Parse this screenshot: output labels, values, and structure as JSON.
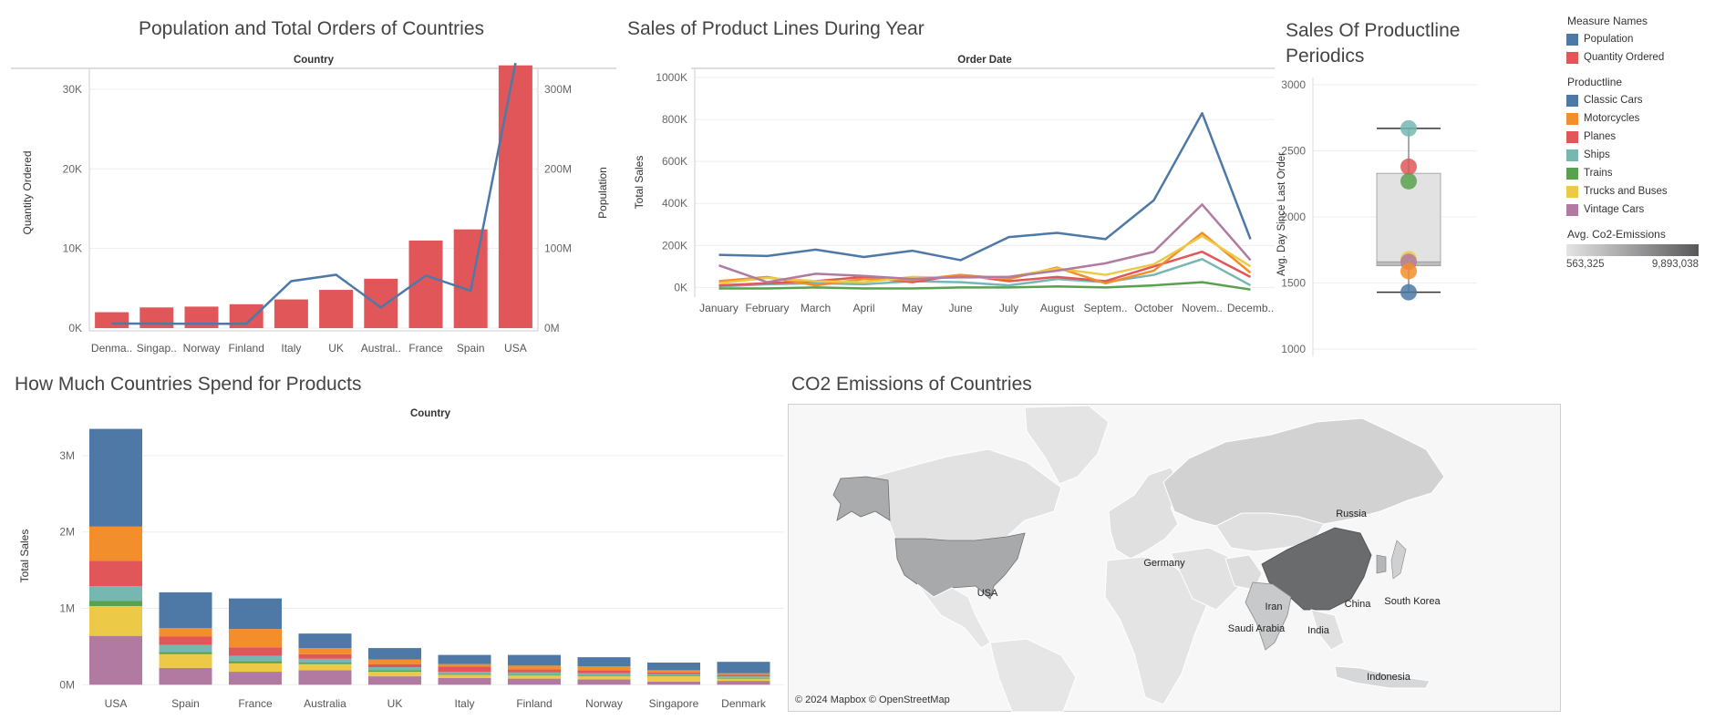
{
  "titles": {
    "population_orders": "Population and Total Orders of Countries",
    "sales_product_lines": "Sales of Product Lines During Year",
    "sales_periodics": "Sales Of Productline Periodics",
    "countries_spend": "How Much Countries Spend for Products",
    "co2": "CO2 Emissions of Countries"
  },
  "legend": {
    "measure_title": "Measure Names",
    "measures": [
      {
        "name": "Population",
        "color": "#4e79a7"
      },
      {
        "name": "Quantity Ordered",
        "color": "#e15759"
      }
    ],
    "productline_title": "Productline",
    "productlines": [
      {
        "name": "Classic Cars",
        "color": "#4e79a7"
      },
      {
        "name": "Motorcycles",
        "color": "#f28e2b"
      },
      {
        "name": "Planes",
        "color": "#e15759"
      },
      {
        "name": "Ships",
        "color": "#76b7b2"
      },
      {
        "name": "Trains",
        "color": "#59a14f"
      },
      {
        "name": "Trucks and Buses",
        "color": "#edc948"
      },
      {
        "name": "Vintage Cars",
        "color": "#b07aa1"
      }
    ],
    "co2_title": "Avg. Co2-Emissions",
    "co2_min": "563,325",
    "co2_max": "9,893,038"
  },
  "map": {
    "attribution": "© 2024 Mapbox © OpenStreetMap",
    "labels": [
      "Russia",
      "Germany",
      "USA",
      "Iran",
      "Saudi Arabia",
      "India",
      "China",
      "South Korea",
      "Indonesia"
    ]
  },
  "chart_data": [
    {
      "type": "bar",
      "id": "population_orders",
      "title": "Population and Total Orders of Countries",
      "header": "Country",
      "categories": [
        "Denma..",
        "Singap..",
        "Norway",
        "Finland",
        "Italy",
        "UK",
        "Austral..",
        "France",
        "Spain",
        "USA"
      ],
      "series": [
        {
          "name": "Quantity Ordered",
          "type": "bar",
          "axis": "left",
          "values": [
            2000,
            2600,
            2700,
            3000,
            3600,
            4800,
            6200,
            11000,
            12400,
            33000
          ]
        },
        {
          "name": "Population",
          "type": "line",
          "axis": "right",
          "values": [
            5.8,
            5.6,
            5.4,
            5.5,
            59,
            67,
            26,
            66,
            47,
            333
          ]
        }
      ],
      "ylabel": "Quantity Ordered",
      "ylabel_right": "Population",
      "ylim": [
        0,
        34000
      ],
      "ylim_right": [
        0,
        340
      ],
      "yticks": [
        {
          "v": 0,
          "t": "0K"
        },
        {
          "v": 10000,
          "t": "10K"
        },
        {
          "v": 20000,
          "t": "20K"
        },
        {
          "v": 30000,
          "t": "30K"
        }
      ],
      "yticks_right": [
        {
          "v": 0,
          "t": "0M"
        },
        {
          "v": 100,
          "t": "100M"
        },
        {
          "v": 200,
          "t": "200M"
        },
        {
          "v": 300,
          "t": "300M"
        }
      ]
    },
    {
      "type": "line",
      "id": "sales_product_lines",
      "title": "Sales of Product Lines During Year",
      "header": "Order Date",
      "x": [
        "January",
        "February",
        "March",
        "April",
        "May",
        "June",
        "July",
        "August",
        "Septem..",
        "October",
        "Novem..",
        "Decemb.."
      ],
      "ylabel": "Total Sales",
      "ylim": [
        -20000,
        1000000
      ],
      "yticks": [
        {
          "v": 0,
          "t": "0K"
        },
        {
          "v": 200000,
          "t": "200K"
        },
        {
          "v": 400000,
          "t": "400K"
        },
        {
          "v": 600000,
          "t": "600K"
        },
        {
          "v": 800000,
          "t": "800K"
        },
        {
          "v": 1000000,
          "t": "1000K"
        }
      ],
      "series": [
        {
          "name": "Classic Cars",
          "color": "#4e79a7",
          "values": [
            155000,
            150000,
            180000,
            145000,
            175000,
            130000,
            240000,
            260000,
            230000,
            415000,
            830000,
            230000
          ]
        },
        {
          "name": "Vintage Cars",
          "color": "#b07aa1",
          "values": [
            105000,
            25000,
            65000,
            55000,
            40000,
            50000,
            50000,
            80000,
            115000,
            170000,
            395000,
            130000
          ]
        },
        {
          "name": "Trucks and Buses",
          "color": "#edc948",
          "values": [
            20000,
            45000,
            30000,
            25000,
            50000,
            45000,
            50000,
            90000,
            60000,
            110000,
            245000,
            100000
          ]
        },
        {
          "name": "Motorcycles",
          "color": "#f28e2b",
          "values": [
            30000,
            50000,
            10000,
            40000,
            35000,
            60000,
            40000,
            95000,
            20000,
            80000,
            260000,
            70000
          ]
        },
        {
          "name": "Planes",
          "color": "#e15759",
          "values": [
            10000,
            20000,
            30000,
            50000,
            25000,
            60000,
            30000,
            50000,
            30000,
            100000,
            170000,
            50000
          ]
        },
        {
          "name": "Ships",
          "color": "#76b7b2",
          "values": [
            5000,
            15000,
            20000,
            15000,
            30000,
            25000,
            10000,
            40000,
            25000,
            60000,
            135000,
            10000
          ]
        },
        {
          "name": "Trains",
          "color": "#59a14f",
          "values": [
            -5000,
            -5000,
            0,
            -5000,
            -5000,
            0,
            0,
            5000,
            0,
            10000,
            25000,
            -10000
          ]
        }
      ]
    },
    {
      "type": "scatter",
      "id": "sales_periodics",
      "title": "Sales Of Productline Periodics",
      "ylabel": "Avg. Day Since Last Order",
      "ylim": [
        1000,
        3000
      ],
      "yticks": [
        {
          "v": 1000,
          "t": "1000"
        },
        {
          "v": 1500,
          "t": "1500"
        },
        {
          "v": 2000,
          "t": "2000"
        },
        {
          "v": 2500,
          "t": "2500"
        },
        {
          "v": 3000,
          "t": "3000"
        }
      ],
      "box": {
        "min": 1430,
        "q1": 1630,
        "median": 1660,
        "q3": 2330,
        "max": 2670
      },
      "points": [
        {
          "name": "Ships",
          "color": "#76b7b2",
          "y": 2670
        },
        {
          "name": "Planes",
          "color": "#e15759",
          "y": 2380
        },
        {
          "name": "Trains",
          "color": "#59a14f",
          "y": 2270
        },
        {
          "name": "Trucks and Buses",
          "color": "#edc948",
          "y": 1680
        },
        {
          "name": "Vintage Cars",
          "color": "#b07aa1",
          "y": 1660
        },
        {
          "name": "Motorcycles",
          "color": "#f28e2b",
          "y": 1590
        },
        {
          "name": "Classic Cars",
          "color": "#4e79a7",
          "y": 1430
        }
      ]
    },
    {
      "type": "bar",
      "id": "countries_spend",
      "stacked": true,
      "title": "How Much Countries Spend for Products",
      "header": "Country",
      "categories": [
        "USA",
        "Spain",
        "France",
        "Australia",
        "UK",
        "Italy",
        "Finland",
        "Norway",
        "Singapore",
        "Denmark"
      ],
      "ylabel": "Total Sales",
      "ylim": [
        -80000,
        3500000
      ],
      "yticks": [
        {
          "v": 0,
          "t": "0M"
        },
        {
          "v": 1000000,
          "t": "1M"
        },
        {
          "v": 2000000,
          "t": "2M"
        },
        {
          "v": 3000000,
          "t": "3M"
        }
      ],
      "series": [
        {
          "name": "Vintage Cars",
          "color": "#b07aa1",
          "values": [
            640000,
            220000,
            170000,
            190000,
            110000,
            90000,
            80000,
            70000,
            40000,
            50000
          ]
        },
        {
          "name": "Trucks and Buses",
          "color": "#edc948",
          "values": [
            390000,
            180000,
            110000,
            80000,
            60000,
            40000,
            40000,
            40000,
            70000,
            30000
          ]
        },
        {
          "name": "Trains",
          "color": "#59a14f",
          "values": [
            70000,
            30000,
            30000,
            20000,
            20000,
            10000,
            10000,
            10000,
            10000,
            10000
          ]
        },
        {
          "name": "Ships",
          "color": "#76b7b2",
          "values": [
            190000,
            90000,
            70000,
            50000,
            40000,
            30000,
            30000,
            30000,
            20000,
            20000
          ]
        },
        {
          "name": "Planes",
          "color": "#e15759",
          "values": [
            330000,
            110000,
            110000,
            60000,
            40000,
            70000,
            40000,
            40000,
            20000,
            20000
          ]
        },
        {
          "name": "Motorcycles",
          "color": "#f28e2b",
          "values": [
            450000,
            110000,
            240000,
            80000,
            60000,
            30000,
            50000,
            50000,
            30000,
            20000
          ]
        },
        {
          "name": "Classic Cars",
          "color": "#4e79a7",
          "values": [
            1280000,
            470000,
            400000,
            190000,
            150000,
            120000,
            140000,
            120000,
            100000,
            150000
          ]
        }
      ]
    }
  ]
}
